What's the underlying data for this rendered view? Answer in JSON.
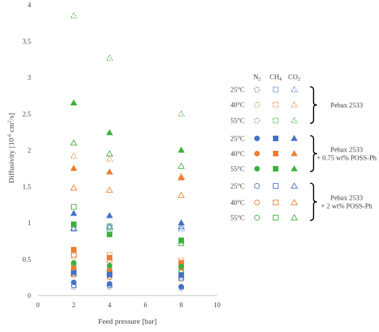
{
  "chart_data": {
    "type": "scatter",
    "xlabel": "Feed pressure [bar]",
    "ylabel_main": "Diffusivity [10",
    "ylabel_sup": "-6",
    "ylabel_mid": " cm",
    "ylabel_sup2": "2",
    "ylabel_end": "/s]",
    "xlim": [
      0,
      10
    ],
    "ylim": [
      0,
      4
    ],
    "xticks": [
      "0",
      "2",
      "4",
      "6",
      "8",
      "10"
    ],
    "yticks": [
      "0",
      "0.5",
      "1",
      "1.5",
      "2",
      "2.5",
      "3",
      "3.5",
      "4"
    ],
    "gas_headers": [
      {
        "base": "N",
        "sub": "2"
      },
      {
        "base": "CH",
        "sub": "4"
      },
      {
        "base": "CO",
        "sub": "2"
      }
    ],
    "groups": [
      {
        "label_lines": [
          "Pebax 2533"
        ],
        "fill": "dashed"
      },
      {
        "label_lines": [
          "Pebax 2533",
          "+ 0.75 wt% POSS-Ph"
        ],
        "fill": "filled"
      },
      {
        "label_lines": [
          "Pebax 2533",
          "+ 2 wt% POSS-Ph"
        ],
        "fill": "open"
      }
    ],
    "temperatures": [
      {
        "label": "25°C",
        "color": "#4472C4"
      },
      {
        "label": "40°C",
        "color": "#ED7D31"
      },
      {
        "label": "55°C",
        "color": "#3DB13D"
      }
    ],
    "gas_markers": [
      "circle",
      "square",
      "triangle"
    ],
    "series": [
      {
        "group": 0,
        "temp": 0,
        "gas": 0,
        "x": [
          2,
          4,
          8
        ],
        "y": [
          0.12,
          0.12,
          0.1
        ]
      },
      {
        "group": 0,
        "temp": 0,
        "gas": 1,
        "x": [
          2,
          4,
          8
        ],
        "y": [
          0.3,
          0.28,
          0.26
        ]
      },
      {
        "group": 0,
        "temp": 0,
        "gas": 2,
        "x": [
          2,
          4,
          8
        ],
        "y": [
          0.93,
          0.94,
          0.92
        ]
      },
      {
        "group": 0,
        "temp": 1,
        "gas": 0,
        "x": [
          2,
          4,
          8
        ],
        "y": [
          0.28,
          0.26,
          0.22
        ]
      },
      {
        "group": 0,
        "temp": 1,
        "gas": 1,
        "x": [
          2,
          4,
          8
        ],
        "y": [
          0.57,
          0.56,
          0.48
        ]
      },
      {
        "group": 0,
        "temp": 1,
        "gas": 2,
        "x": [
          2,
          4,
          8
        ],
        "y": [
          1.92,
          1.88,
          1.64
        ]
      },
      {
        "group": 0,
        "temp": 2,
        "gas": 0,
        "x": [
          2,
          4,
          8
        ],
        "y": [
          0.38,
          0.32,
          0.32
        ]
      },
      {
        "group": 0,
        "temp": 2,
        "gas": 1,
        "x": [
          2,
          4,
          8
        ],
        "y": [
          0.92,
          0.86,
          0.75
        ]
      },
      {
        "group": 0,
        "temp": 2,
        "gas": 2,
        "x": [
          2,
          4,
          8
        ],
        "y": [
          3.85,
          3.27,
          2.5
        ]
      },
      {
        "group": 1,
        "temp": 0,
        "gas": 0,
        "x": [
          2,
          4,
          8
        ],
        "y": [
          0.18,
          0.16,
          0.12
        ]
      },
      {
        "group": 1,
        "temp": 0,
        "gas": 1,
        "x": [
          2,
          4,
          8
        ],
        "y": [
          0.32,
          0.29,
          0.28
        ]
      },
      {
        "group": 1,
        "temp": 0,
        "gas": 2,
        "x": [
          2,
          4,
          8
        ],
        "y": [
          1.13,
          1.1,
          1.0
        ]
      },
      {
        "group": 1,
        "temp": 1,
        "gas": 0,
        "x": [
          2,
          4,
          8
        ],
        "y": [
          0.38,
          0.36,
          0.38
        ]
      },
      {
        "group": 1,
        "temp": 1,
        "gas": 1,
        "x": [
          2,
          4,
          8
        ],
        "y": [
          0.63,
          0.52,
          0.45
        ]
      },
      {
        "group": 1,
        "temp": 1,
        "gas": 2,
        "x": [
          2,
          4,
          8
        ],
        "y": [
          1.75,
          1.7,
          1.62
        ]
      },
      {
        "group": 1,
        "temp": 2,
        "gas": 0,
        "x": [
          2,
          4,
          8
        ],
        "y": [
          0.45,
          0.41,
          0.4
        ]
      },
      {
        "group": 1,
        "temp": 2,
        "gas": 1,
        "x": [
          2,
          4,
          8
        ],
        "y": [
          0.98,
          0.84,
          0.76
        ]
      },
      {
        "group": 1,
        "temp": 2,
        "gas": 2,
        "x": [
          2,
          4,
          8
        ],
        "y": [
          2.65,
          2.24,
          2.0
        ]
      },
      {
        "group": 2,
        "temp": 0,
        "gas": 0,
        "x": [
          2,
          4,
          8
        ],
        "y": [
          0.14,
          0.14,
          0.12
        ]
      },
      {
        "group": 2,
        "temp": 0,
        "gas": 1,
        "x": [
          2,
          4,
          8
        ],
        "y": [
          0.3,
          0.3,
          0.24
        ]
      },
      {
        "group": 2,
        "temp": 0,
        "gas": 2,
        "x": [
          2,
          4,
          8
        ],
        "y": [
          0.92,
          0.95,
          0.95
        ]
      },
      {
        "group": 2,
        "temp": 1,
        "gas": 0,
        "x": [
          2,
          4,
          8
        ],
        "y": [
          0.3,
          0.25,
          0.28
        ]
      },
      {
        "group": 2,
        "temp": 1,
        "gas": 1,
        "x": [
          2,
          4,
          8
        ],
        "y": [
          0.55,
          0.49,
          0.42
        ]
      },
      {
        "group": 2,
        "temp": 1,
        "gas": 2,
        "x": [
          2,
          4,
          8
        ],
        "y": [
          1.48,
          1.45,
          1.38
        ]
      },
      {
        "group": 2,
        "temp": 2,
        "gas": 0,
        "x": [
          2,
          4,
          8
        ],
        "y": [
          0.42,
          0.34,
          0.35
        ]
      },
      {
        "group": 2,
        "temp": 2,
        "gas": 1,
        "x": [
          2,
          4,
          8
        ],
        "y": [
          1.22,
          0.95,
          0.72
        ]
      },
      {
        "group": 2,
        "temp": 2,
        "gas": 2,
        "x": [
          2,
          4,
          8
        ],
        "y": [
          2.1,
          1.95,
          1.78
        ]
      }
    ]
  }
}
